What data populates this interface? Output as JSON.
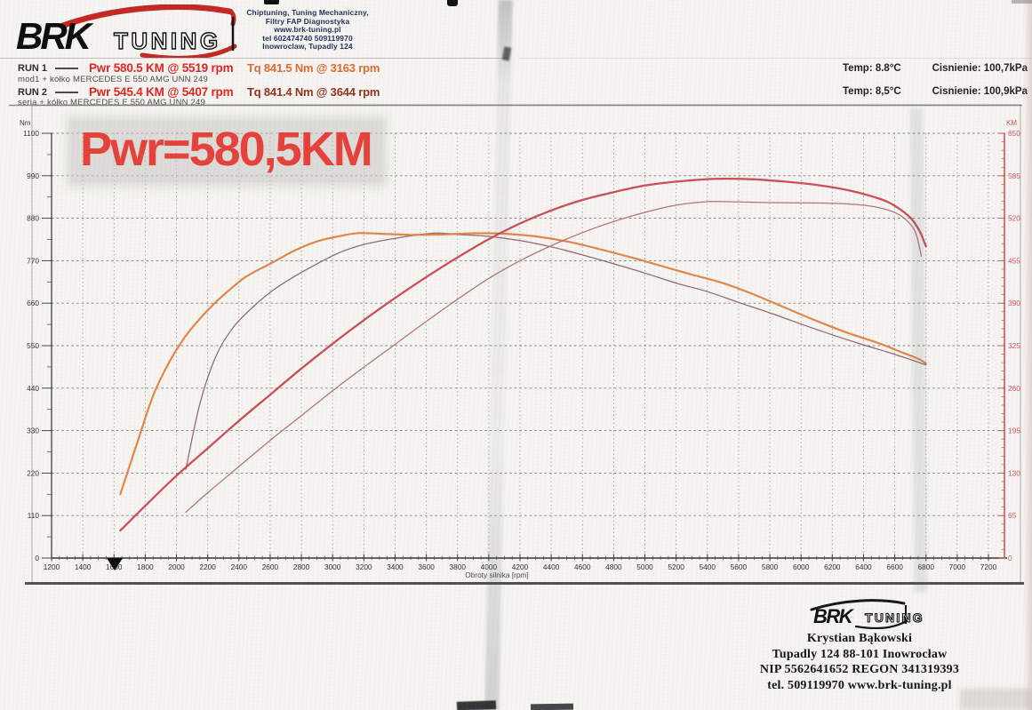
{
  "header": {
    "logo": {
      "brk": "BRK",
      "tuning": "TUNING"
    },
    "contact_lines": [
      "Chiptuning, Tuning Mechaniczny,",
      "Filtry FAP  Diagnostyka",
      "www.brk-tuning.pl",
      "tel 602474740 509119970",
      "Inowroclaw, Tupadly 124"
    ]
  },
  "legend": {
    "runs": [
      {
        "name": "RUN 1",
        "pwr": "Pwr 580.5 KM @ 5519 rpm",
        "tq": "Tq 841.5 Nm @ 3163 rpm",
        "desc": "mod1 + kółko MERCEDES E 550 AMG UNN 249",
        "temp": "Temp: 8.8°C",
        "pressure": "Cisnienie: 100,7kPa"
      },
      {
        "name": "RUN 2",
        "pwr": "Pwr 545.4 KM @ 5407 rpm",
        "tq": "Tq 841.4 Nm @ 3644 rpm",
        "desc": "seria + kółko MERCEDES E 550 AMG UNN 249",
        "temp": "Temp: 8,5°C",
        "pressure": "Cisnienie: 100,9kPa"
      }
    ]
  },
  "annotation": {
    "power_callout": "Pwr=580,5KM"
  },
  "chart_data": {
    "type": "line",
    "x_label": "Obroty silnika [rpm]",
    "y_left_label": "Nm",
    "y_right_label": "KM",
    "x_range": [
      1200,
      7200
    ],
    "y_left_range": [
      0,
      1100
    ],
    "y_right_range": [
      0,
      650
    ],
    "x_ticks": [
      1200,
      1400,
      1600,
      1800,
      2000,
      2200,
      2400,
      2600,
      2800,
      3000,
      3200,
      3400,
      3600,
      3800,
      4000,
      4200,
      4400,
      4600,
      4800,
      5000,
      5200,
      5400,
      5600,
      5800,
      6000,
      6200,
      6400,
      6600,
      6800,
      7000,
      7200
    ],
    "y_left_ticks": [
      0,
      110,
      220,
      330,
      440,
      550,
      660,
      770,
      880,
      990,
      1100
    ],
    "y_right_ticks": [
      0,
      65,
      130,
      195,
      260,
      325,
      390,
      455,
      520,
      585,
      650
    ],
    "x_minor_step": 50,
    "grid": true,
    "run_start_marker_rpm": 1600,
    "series": [
      {
        "id": "pwr_run1",
        "name": "RUN 1 Pwr [KM]",
        "axis": "right",
        "color": "#c9454e",
        "width": 2.3,
        "points": [
          [
            1640,
            42
          ],
          [
            1800,
            80
          ],
          [
            2000,
            126
          ],
          [
            2200,
            168
          ],
          [
            2400,
            210
          ],
          [
            2600,
            250
          ],
          [
            2800,
            290
          ],
          [
            3000,
            328
          ],
          [
            3200,
            364
          ],
          [
            3400,
            398
          ],
          [
            3600,
            430
          ],
          [
            3800,
            460
          ],
          [
            4000,
            488
          ],
          [
            4200,
            512
          ],
          [
            4400,
            532
          ],
          [
            4600,
            548
          ],
          [
            4800,
            560
          ],
          [
            5000,
            570
          ],
          [
            5200,
            576
          ],
          [
            5400,
            579.8
          ],
          [
            5519,
            580.5
          ],
          [
            5700,
            579.5
          ],
          [
            5900,
            576
          ],
          [
            6100,
            571
          ],
          [
            6300,
            563
          ],
          [
            6500,
            550
          ],
          [
            6600,
            539
          ],
          [
            6700,
            521
          ],
          [
            6760,
            500
          ],
          [
            6800,
            477
          ]
        ]
      },
      {
        "id": "pwr_run2",
        "name": "RUN 2 Pwr [KM]",
        "axis": "right",
        "color": "#b06a77",
        "width": 1.25,
        "points": [
          [
            2060,
            70
          ],
          [
            2200,
            100
          ],
          [
            2400,
            140
          ],
          [
            2600,
            180
          ],
          [
            2800,
            218
          ],
          [
            3000,
            256
          ],
          [
            3200,
            292
          ],
          [
            3400,
            327
          ],
          [
            3600,
            362
          ],
          [
            3800,
            396
          ],
          [
            4000,
            428
          ],
          [
            4200,
            455
          ],
          [
            4400,
            478
          ],
          [
            4600,
            498
          ],
          [
            4800,
            515
          ],
          [
            5000,
            529
          ],
          [
            5200,
            540
          ],
          [
            5407,
            545.4
          ],
          [
            5600,
            545
          ],
          [
            5800,
            544
          ],
          [
            6000,
            543.5
          ],
          [
            6200,
            543
          ],
          [
            6400,
            540
          ],
          [
            6550,
            533
          ],
          [
            6650,
            522
          ],
          [
            6730,
            500
          ],
          [
            6770,
            462
          ]
        ]
      },
      {
        "id": "tq_run1",
        "name": "RUN 1 Tq [Nm]",
        "axis": "left",
        "color": "#e0813e",
        "width": 2.2,
        "points": [
          [
            1640,
            165
          ],
          [
            1750,
            300
          ],
          [
            1850,
            420
          ],
          [
            1950,
            505
          ],
          [
            2050,
            570
          ],
          [
            2150,
            620
          ],
          [
            2250,
            662
          ],
          [
            2350,
            698
          ],
          [
            2450,
            730
          ],
          [
            2600,
            762
          ],
          [
            2750,
            795
          ],
          [
            2900,
            820
          ],
          [
            3050,
            834
          ],
          [
            3163,
            841.5
          ],
          [
            3300,
            840
          ],
          [
            3500,
            837
          ],
          [
            3700,
            838
          ],
          [
            3900,
            841
          ],
          [
            4100,
            840
          ],
          [
            4300,
            833
          ],
          [
            4500,
            820
          ],
          [
            4700,
            801
          ],
          [
            4900,
            780
          ],
          [
            5100,
            757
          ],
          [
            5300,
            734
          ],
          [
            5500,
            712
          ],
          [
            5700,
            682
          ],
          [
            5900,
            648
          ],
          [
            6100,
            614
          ],
          [
            6300,
            583
          ],
          [
            6500,
            556
          ],
          [
            6650,
            532
          ],
          [
            6750,
            516
          ],
          [
            6800,
            504
          ]
        ]
      },
      {
        "id": "tq_run2",
        "name": "RUN 2 Tq [Nm]",
        "axis": "left",
        "color": "#8e5f68",
        "width": 1.25,
        "points": [
          [
            2060,
            230
          ],
          [
            2150,
            400
          ],
          [
            2250,
            520
          ],
          [
            2350,
            590
          ],
          [
            2450,
            635
          ],
          [
            2600,
            688
          ],
          [
            2750,
            728
          ],
          [
            2900,
            762
          ],
          [
            3050,
            792
          ],
          [
            3200,
            812
          ],
          [
            3400,
            828
          ],
          [
            3644,
            841.4
          ],
          [
            3800,
            838
          ],
          [
            4000,
            833
          ],
          [
            4200,
            822
          ],
          [
            4400,
            806
          ],
          [
            4600,
            785
          ],
          [
            4800,
            762
          ],
          [
            5000,
            738
          ],
          [
            5200,
            712
          ],
          [
            5400,
            690
          ],
          [
            5600,
            662
          ],
          [
            5800,
            635
          ],
          [
            6000,
            606
          ],
          [
            6200,
            578
          ],
          [
            6400,
            552
          ],
          [
            6550,
            534
          ],
          [
            6700,
            514
          ],
          [
            6800,
            500
          ]
        ]
      }
    ]
  },
  "footer": {
    "logo": {
      "brk": "BRK",
      "tuning": "TUNING"
    },
    "lines": [
      "Krystian Bąkowski",
      "Tupadly 124 88-101 Inowrocław",
      "NIP 5562641652 REGON 341319393",
      "tel. 509119970 www.brk-tuning.pl"
    ]
  },
  "colors": {
    "pwr_label": "#e02522",
    "tq1_label": "#e06a2e",
    "tq2_label": "#96301f",
    "callout": "#e6413a",
    "right_axis": "#d4555e",
    "curve_pwr_run1": "#c9454e",
    "curve_pwr_run2": "#b06a77",
    "curve_tq_run1": "#e0813e",
    "curve_tq_run2": "#8e5f68"
  }
}
